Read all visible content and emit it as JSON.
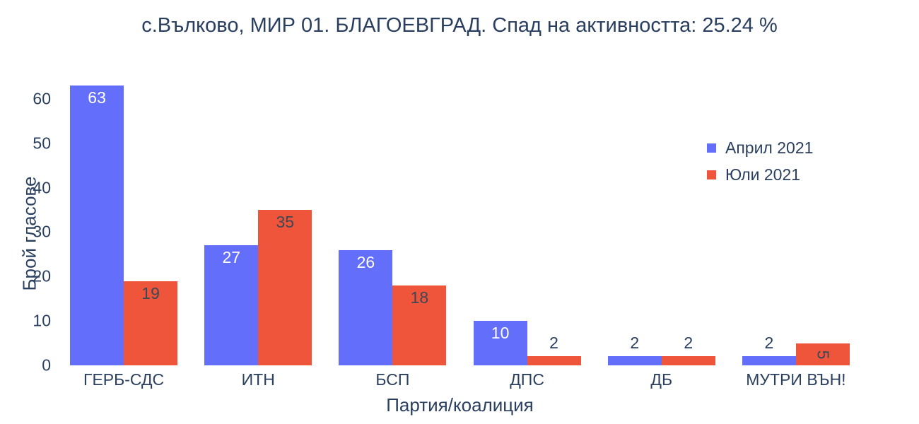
{
  "chart_data": {
    "type": "bar",
    "title": "с.Вълково, МИР 01. БЛАГОЕВГРАД. Спад на активността: 25.24 %",
    "xlabel": "Партия/коалиция",
    "ylabel": "Брой гласове",
    "categories": [
      "ГЕРБ-СДС",
      "ИТН",
      "БСП",
      "ДПС",
      "ДБ",
      "МУТРИ ВЪН!"
    ],
    "series": [
      {
        "name": "Април 2021",
        "color": "#636efa",
        "values": [
          63,
          27,
          26,
          10,
          2,
          2
        ],
        "label_positions": [
          "inside",
          "inside",
          "inside",
          "inside",
          "outside",
          "outside"
        ],
        "inside_label_color": "#ffffff"
      },
      {
        "name": "Юли 2021",
        "color": "#ef553b",
        "values": [
          19,
          35,
          18,
          2,
          2,
          5
        ],
        "label_positions": [
          "inside",
          "inside",
          "inside",
          "outside",
          "outside",
          "inside-rotated"
        ],
        "inside_label_color": "#3d4855"
      }
    ],
    "yticks": [
      0,
      10,
      20,
      30,
      40,
      50,
      60
    ],
    "ylim": [
      0,
      63
    ],
    "grid": false,
    "legend_position": "right-upper",
    "outside_label_color": "#2a3f5f",
    "text_color": "#2a3f5f"
  }
}
